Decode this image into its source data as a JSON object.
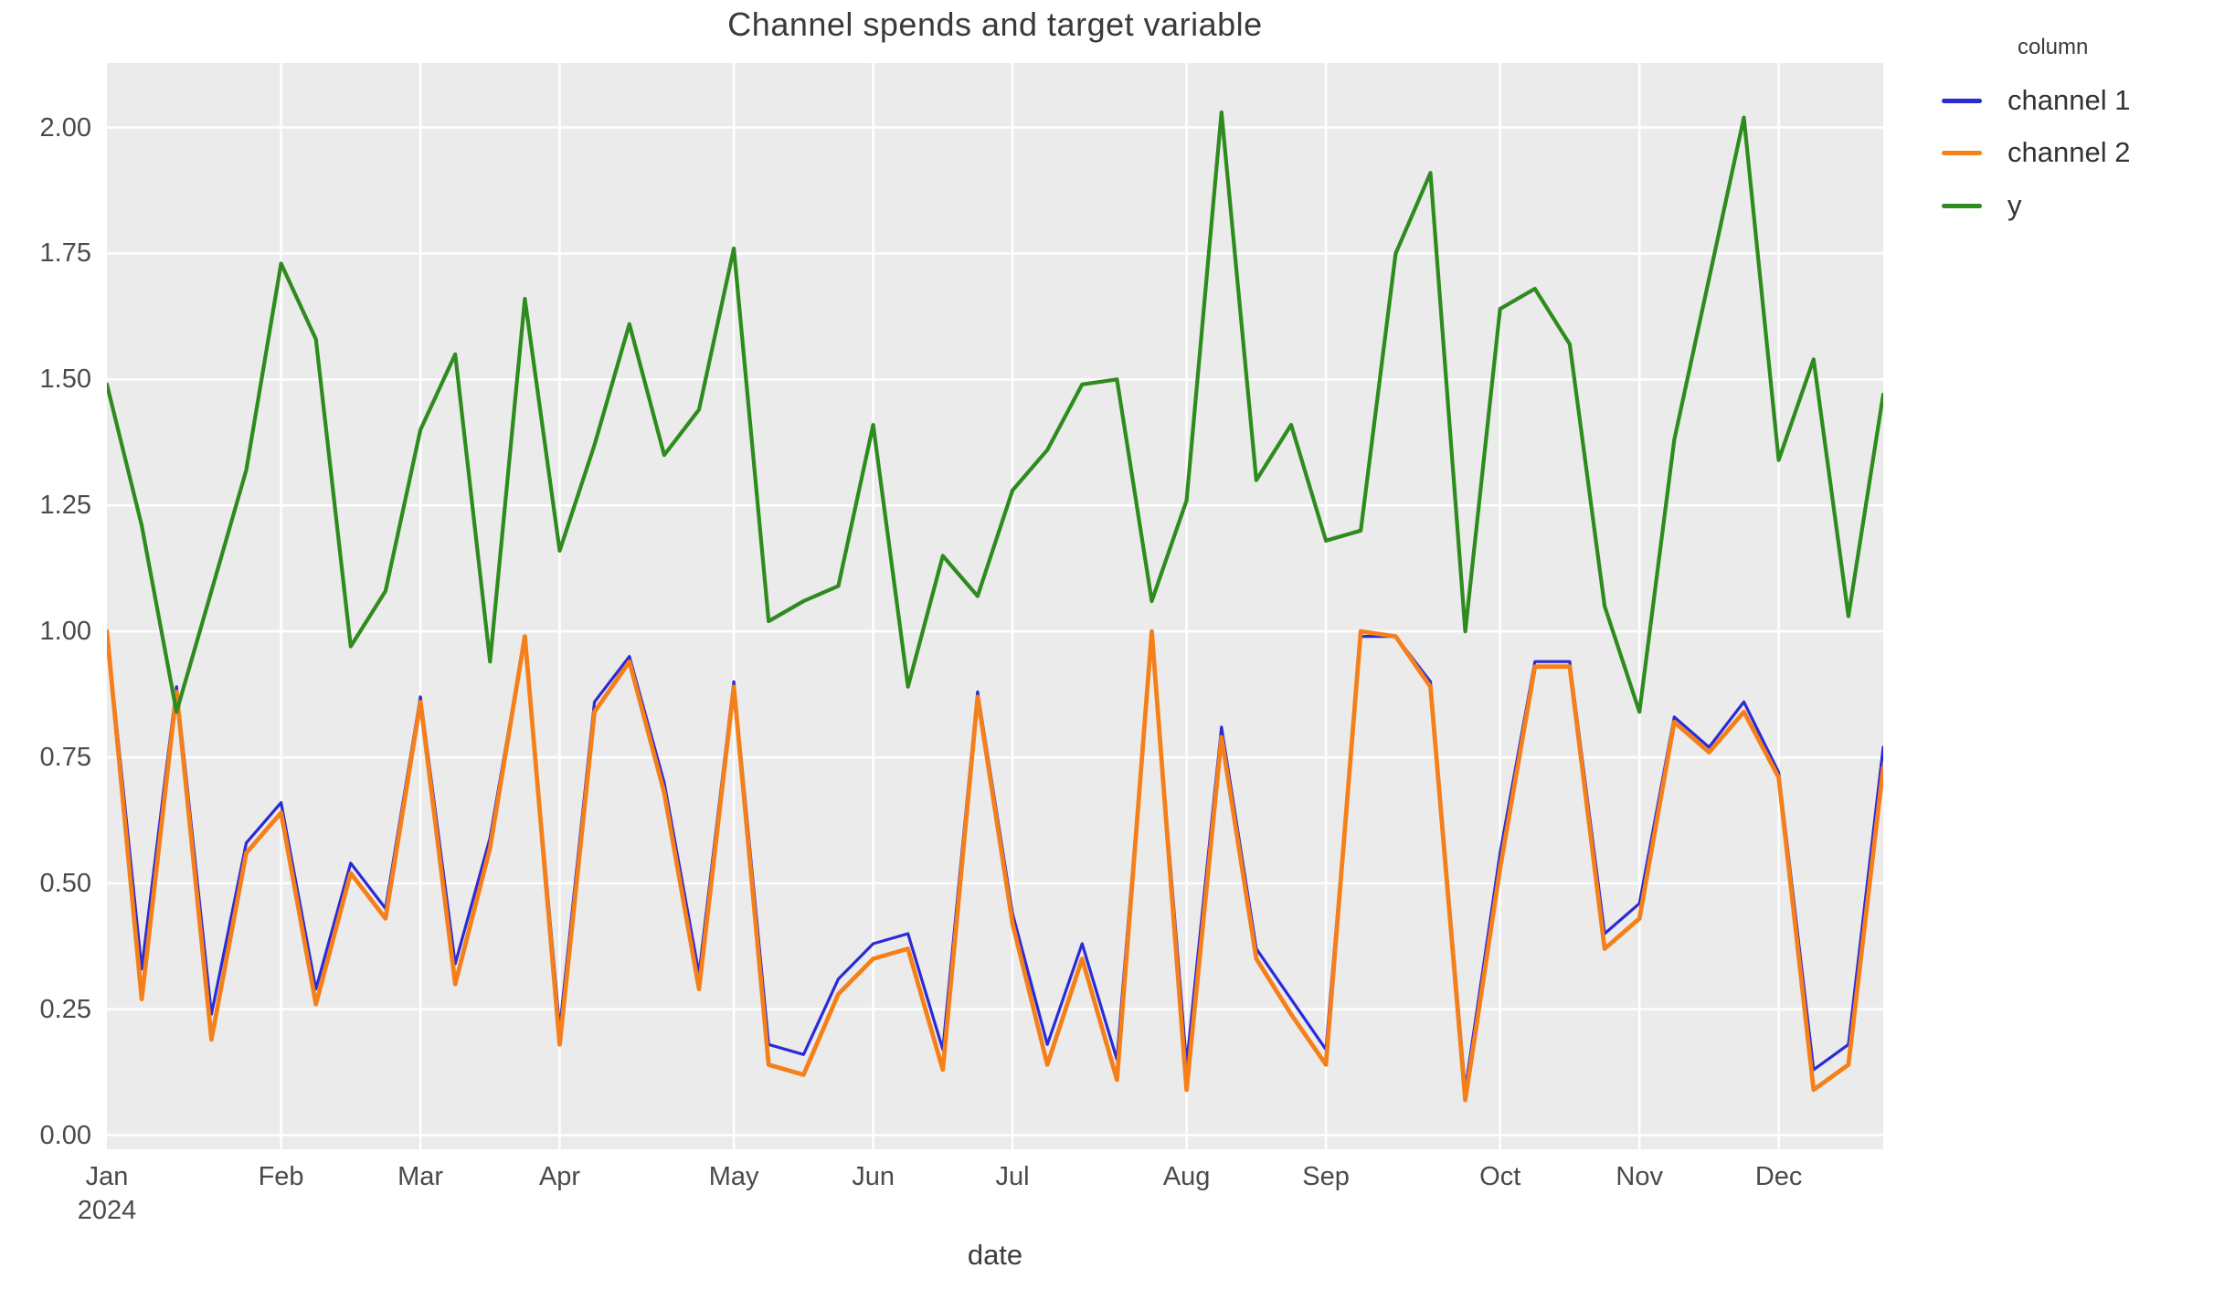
{
  "title": "Channel spends and target variable",
  "xlabel": "date",
  "legend": {
    "title": "column",
    "entries": [
      {
        "label": "channel 1",
        "color": "#2a2ad9"
      },
      {
        "label": "channel 2",
        "color": "#f5801a"
      },
      {
        "label": "y",
        "color": "#2e8b1e"
      }
    ]
  },
  "colors": {
    "plot_background": "#ebebeb",
    "grid": "#ffffff",
    "tick_text": "#4a4a4a",
    "title_text": "#3a3a3a"
  },
  "chart_data": {
    "type": "line",
    "title": "Channel spends and target variable",
    "xlabel": "date",
    "ylabel": "",
    "grid": true,
    "legend_position": "right",
    "ylim": [
      -0.028,
      2.128
    ],
    "y_tick_values": [
      0.0,
      0.25,
      0.5,
      0.75,
      1.0,
      1.25,
      1.5,
      1.75,
      2.0
    ],
    "y_tick_labels": [
      "0.00",
      "0.25",
      "0.50",
      "0.75",
      "1.00",
      "1.25",
      "1.50",
      "1.75",
      "2.00"
    ],
    "x_ticks": [
      {
        "week": 0,
        "label": "Jan",
        "sublabel": "2024"
      },
      {
        "week": 5,
        "label": "Feb"
      },
      {
        "week": 9,
        "label": "Mar"
      },
      {
        "week": 13,
        "label": "Apr"
      },
      {
        "week": 18,
        "label": "May"
      },
      {
        "week": 22,
        "label": "Jun"
      },
      {
        "week": 26,
        "label": "Jul"
      },
      {
        "week": 31,
        "label": "Aug"
      },
      {
        "week": 35,
        "label": "Sep"
      },
      {
        "week": 40,
        "label": "Oct"
      },
      {
        "week": 44,
        "label": "Nov"
      },
      {
        "week": 48,
        "label": "Dec"
      }
    ],
    "x_dates": [
      "2024-01-01",
      "2024-01-08",
      "2024-01-15",
      "2024-01-22",
      "2024-01-29",
      "2024-02-05",
      "2024-02-12",
      "2024-02-19",
      "2024-02-26",
      "2024-03-04",
      "2024-03-11",
      "2024-03-18",
      "2024-03-25",
      "2024-04-01",
      "2024-04-08",
      "2024-04-15",
      "2024-04-22",
      "2024-04-29",
      "2024-05-06",
      "2024-05-13",
      "2024-05-20",
      "2024-05-27",
      "2024-06-03",
      "2024-06-10",
      "2024-06-17",
      "2024-06-24",
      "2024-07-01",
      "2024-07-08",
      "2024-07-15",
      "2024-07-22",
      "2024-07-29",
      "2024-08-05",
      "2024-08-12",
      "2024-08-19",
      "2024-08-26",
      "2024-09-02",
      "2024-09-09",
      "2024-09-16",
      "2024-09-23",
      "2024-09-30",
      "2024-10-07",
      "2024-10-14",
      "2024-10-21",
      "2024-10-28",
      "2024-11-04",
      "2024-11-11",
      "2024-11-18",
      "2024-11-25",
      "2024-12-02",
      "2024-12-09",
      "2024-12-16",
      "2024-12-23"
    ],
    "series": [
      {
        "name": "channel 1",
        "color": "#2a2ad9",
        "line_width": 3.2,
        "values": [
          1.0,
          0.33,
          0.89,
          0.24,
          0.58,
          0.66,
          0.29,
          0.54,
          0.45,
          0.87,
          0.34,
          0.59,
          0.99,
          0.21,
          0.86,
          0.95,
          0.7,
          0.32,
          0.9,
          0.18,
          0.16,
          0.31,
          0.38,
          0.4,
          0.17,
          0.88,
          0.44,
          0.18,
          0.38,
          0.15,
          0.99,
          0.14,
          0.81,
          0.37,
          0.27,
          0.17,
          0.99,
          0.99,
          0.9,
          0.09,
          0.56,
          0.94,
          0.94,
          0.4,
          0.46,
          0.83,
          0.77,
          0.86,
          0.72,
          0.13,
          0.18,
          0.77
        ]
      },
      {
        "name": "channel 2",
        "color": "#f5801a",
        "line_width": 4.8,
        "values": [
          1.0,
          0.27,
          0.88,
          0.19,
          0.56,
          0.64,
          0.26,
          0.52,
          0.43,
          0.86,
          0.3,
          0.57,
          0.99,
          0.18,
          0.84,
          0.94,
          0.68,
          0.29,
          0.89,
          0.14,
          0.12,
          0.28,
          0.35,
          0.37,
          0.13,
          0.87,
          0.42,
          0.14,
          0.35,
          0.11,
          1.0,
          0.09,
          0.79,
          0.35,
          0.24,
          0.14,
          1.0,
          0.99,
          0.89,
          0.07,
          0.53,
          0.93,
          0.93,
          0.37,
          0.43,
          0.82,
          0.76,
          0.84,
          0.71,
          0.09,
          0.14,
          0.73
        ]
      },
      {
        "name": "y",
        "color": "#2e8b1e",
        "line_width": 4.2,
        "values": [
          1.49,
          1.21,
          0.84,
          1.08,
          1.32,
          1.73,
          1.58,
          0.97,
          1.08,
          1.4,
          1.55,
          0.94,
          1.66,
          1.16,
          1.37,
          1.61,
          1.35,
          1.44,
          1.76,
          1.02,
          1.06,
          1.09,
          1.41,
          0.89,
          1.15,
          1.07,
          1.28,
          1.36,
          1.49,
          1.5,
          1.06,
          1.26,
          2.03,
          1.3,
          1.41,
          1.18,
          1.2,
          1.75,
          1.91,
          1.0,
          1.64,
          1.68,
          1.57,
          1.05,
          0.84,
          1.38,
          1.7,
          2.02,
          1.34,
          1.54,
          1.03,
          1.47
        ]
      }
    ]
  }
}
